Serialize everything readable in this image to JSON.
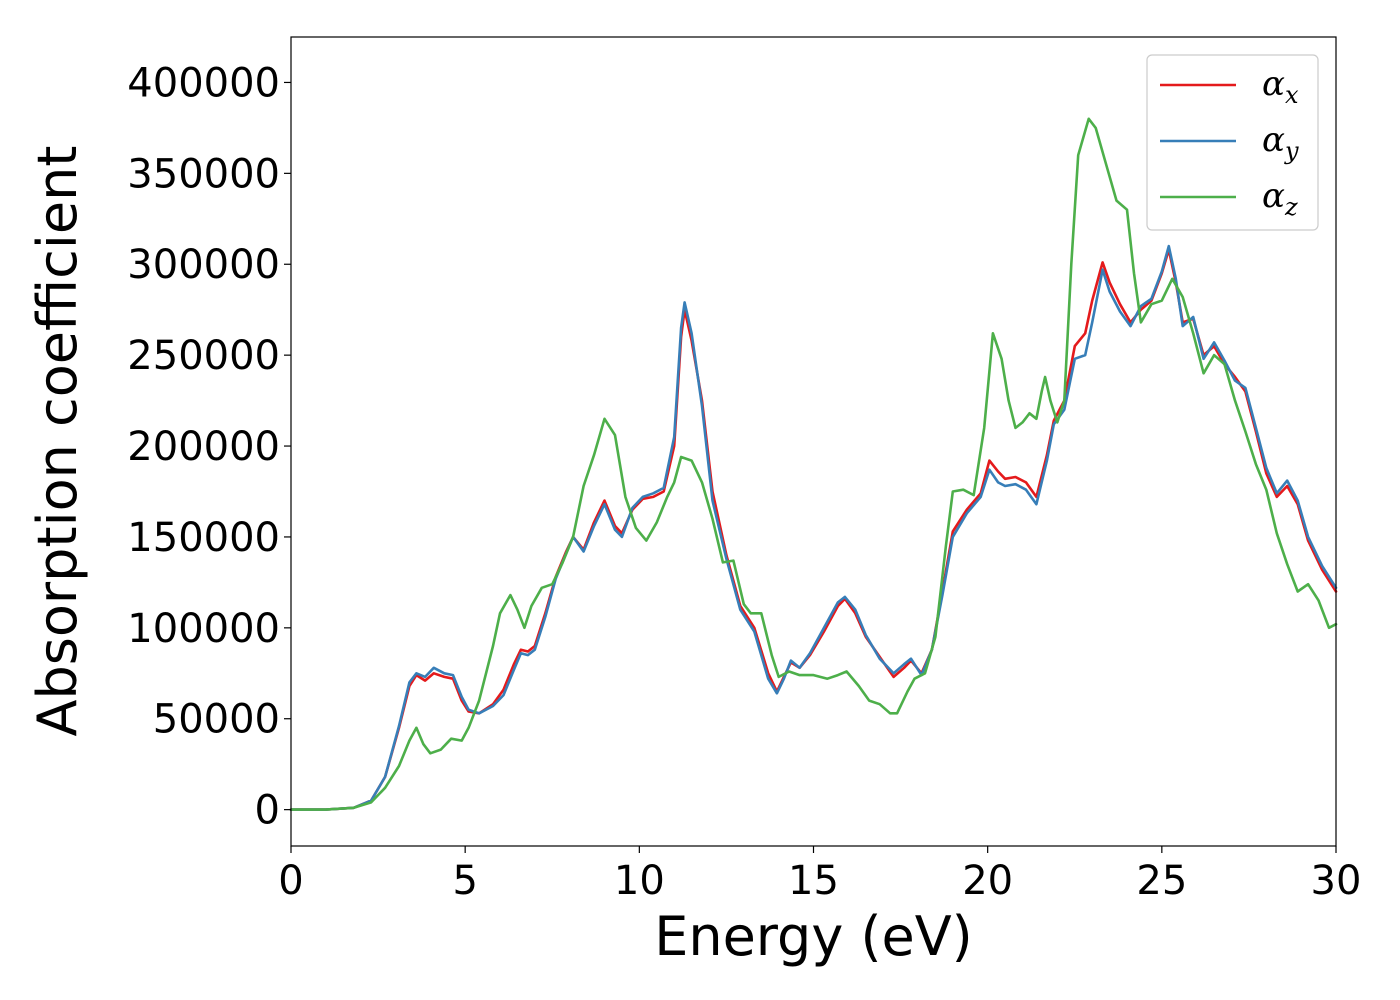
{
  "chart_data": {
    "type": "line",
    "xlabel": "Energy (eV)",
    "ylabel": "Absorption coefficient",
    "xlim": [
      0,
      30
    ],
    "ylim": [
      -20000,
      425000
    ],
    "xticks": [
      0,
      5,
      10,
      15,
      20,
      25,
      30
    ],
    "xtick_labels": [
      "0",
      "5",
      "10",
      "15",
      "20",
      "25",
      "30"
    ],
    "yticks": [
      0,
      50000,
      100000,
      150000,
      200000,
      250000,
      300000,
      350000,
      400000
    ],
    "ytick_labels": [
      "0",
      "50000",
      "100000",
      "150000",
      "200000",
      "250000",
      "300000",
      "350000",
      "400000"
    ],
    "grid": false,
    "legend_position": "top-right",
    "series": [
      {
        "name": "α_x",
        "legend_symbol": "α",
        "legend_sub": "x",
        "color": "#e41a1c",
        "points": [
          [
            0,
            0
          ],
          [
            1,
            0
          ],
          [
            1.8,
            1000
          ],
          [
            2.3,
            5000
          ],
          [
            2.7,
            18000
          ],
          [
            3.1,
            45000
          ],
          [
            3.4,
            68000
          ],
          [
            3.6,
            74000
          ],
          [
            3.85,
            71000
          ],
          [
            4.1,
            75000
          ],
          [
            4.4,
            73000
          ],
          [
            4.65,
            72000
          ],
          [
            4.9,
            60000
          ],
          [
            5.1,
            54000
          ],
          [
            5.4,
            53000
          ],
          [
            5.8,
            58000
          ],
          [
            6.1,
            66000
          ],
          [
            6.4,
            80000
          ],
          [
            6.6,
            88000
          ],
          [
            6.8,
            87000
          ],
          [
            7.0,
            90000
          ],
          [
            7.3,
            108000
          ],
          [
            7.6,
            128000
          ],
          [
            7.9,
            142000
          ],
          [
            8.1,
            150000
          ],
          [
            8.4,
            143000
          ],
          [
            8.7,
            158000
          ],
          [
            9.0,
            170000
          ],
          [
            9.3,
            156000
          ],
          [
            9.5,
            152000
          ],
          [
            9.8,
            165000
          ],
          [
            10.1,
            171000
          ],
          [
            10.4,
            172000
          ],
          [
            10.7,
            175000
          ],
          [
            11.0,
            200000
          ],
          [
            11.2,
            260000
          ],
          [
            11.3,
            275000
          ],
          [
            11.5,
            258000
          ],
          [
            11.8,
            225000
          ],
          [
            12.1,
            175000
          ],
          [
            12.5,
            140000
          ],
          [
            12.9,
            112000
          ],
          [
            13.3,
            100000
          ],
          [
            13.7,
            75000
          ],
          [
            13.95,
            65000
          ],
          [
            14.15,
            73000
          ],
          [
            14.35,
            81000
          ],
          [
            14.6,
            78000
          ],
          [
            14.9,
            85000
          ],
          [
            15.3,
            98000
          ],
          [
            15.7,
            112000
          ],
          [
            15.9,
            116000
          ],
          [
            16.2,
            108000
          ],
          [
            16.5,
            95000
          ],
          [
            16.9,
            84000
          ],
          [
            17.3,
            73000
          ],
          [
            17.6,
            78000
          ],
          [
            17.8,
            82000
          ],
          [
            18.1,
            75000
          ],
          [
            18.4,
            88000
          ],
          [
            18.7,
            120000
          ],
          [
            19.0,
            153000
          ],
          [
            19.4,
            165000
          ],
          [
            19.8,
            174000
          ],
          [
            20.05,
            192000
          ],
          [
            20.3,
            186000
          ],
          [
            20.5,
            182000
          ],
          [
            20.8,
            183000
          ],
          [
            21.1,
            180000
          ],
          [
            21.4,
            172000
          ],
          [
            21.7,
            195000
          ],
          [
            21.9,
            214000
          ],
          [
            22.2,
            225000
          ],
          [
            22.5,
            255000
          ],
          [
            22.8,
            262000
          ],
          [
            23.0,
            280000
          ],
          [
            23.3,
            301000
          ],
          [
            23.5,
            290000
          ],
          [
            23.8,
            278000
          ],
          [
            24.1,
            268000
          ],
          [
            24.4,
            275000
          ],
          [
            24.7,
            280000
          ],
          [
            25.0,
            295000
          ],
          [
            25.2,
            308000
          ],
          [
            25.4,
            290000
          ],
          [
            25.6,
            268000
          ],
          [
            25.9,
            270000
          ],
          [
            26.2,
            250000
          ],
          [
            26.5,
            255000
          ],
          [
            26.8,
            245000
          ],
          [
            27.1,
            238000
          ],
          [
            27.4,
            230000
          ],
          [
            27.7,
            208000
          ],
          [
            28.0,
            185000
          ],
          [
            28.3,
            172000
          ],
          [
            28.6,
            178000
          ],
          [
            28.9,
            168000
          ],
          [
            29.2,
            148000
          ],
          [
            29.6,
            132000
          ],
          [
            30.0,
            120000
          ]
        ]
      },
      {
        "name": "α_y",
        "legend_symbol": "α",
        "legend_sub": "y",
        "color": "#377eb8",
        "points": [
          [
            0,
            0
          ],
          [
            1,
            0
          ],
          [
            1.8,
            1000
          ],
          [
            2.3,
            5000
          ],
          [
            2.7,
            18000
          ],
          [
            3.1,
            46000
          ],
          [
            3.4,
            70000
          ],
          [
            3.6,
            75000
          ],
          [
            3.85,
            73000
          ],
          [
            4.1,
            78000
          ],
          [
            4.4,
            75000
          ],
          [
            4.65,
            74000
          ],
          [
            4.9,
            62000
          ],
          [
            5.1,
            55000
          ],
          [
            5.4,
            53000
          ],
          [
            5.8,
            57000
          ],
          [
            6.1,
            63000
          ],
          [
            6.4,
            77000
          ],
          [
            6.6,
            86000
          ],
          [
            6.8,
            85000
          ],
          [
            7.0,
            88000
          ],
          [
            7.3,
            106000
          ],
          [
            7.6,
            127000
          ],
          [
            7.9,
            141000
          ],
          [
            8.1,
            150000
          ],
          [
            8.4,
            142000
          ],
          [
            8.7,
            156000
          ],
          [
            9.0,
            168000
          ],
          [
            9.3,
            154000
          ],
          [
            9.5,
            150000
          ],
          [
            9.8,
            166000
          ],
          [
            10.1,
            172000
          ],
          [
            10.4,
            174000
          ],
          [
            10.7,
            177000
          ],
          [
            11.0,
            205000
          ],
          [
            11.2,
            265000
          ],
          [
            11.3,
            279000
          ],
          [
            11.5,
            262000
          ],
          [
            11.8,
            222000
          ],
          [
            12.1,
            170000
          ],
          [
            12.5,
            138000
          ],
          [
            12.9,
            110000
          ],
          [
            13.3,
            98000
          ],
          [
            13.7,
            72000
          ],
          [
            13.95,
            64000
          ],
          [
            14.15,
            72000
          ],
          [
            14.35,
            82000
          ],
          [
            14.6,
            78000
          ],
          [
            14.9,
            86000
          ],
          [
            15.3,
            100000
          ],
          [
            15.7,
            114000
          ],
          [
            15.9,
            117000
          ],
          [
            16.2,
            110000
          ],
          [
            16.5,
            96000
          ],
          [
            16.9,
            83000
          ],
          [
            17.3,
            75000
          ],
          [
            17.6,
            80000
          ],
          [
            17.8,
            83000
          ],
          [
            18.1,
            74000
          ],
          [
            18.4,
            88000
          ],
          [
            18.7,
            118000
          ],
          [
            19.0,
            150000
          ],
          [
            19.4,
            163000
          ],
          [
            19.8,
            172000
          ],
          [
            20.05,
            187000
          ],
          [
            20.3,
            180000
          ],
          [
            20.5,
            178000
          ],
          [
            20.8,
            179000
          ],
          [
            21.1,
            176000
          ],
          [
            21.4,
            168000
          ],
          [
            21.7,
            192000
          ],
          [
            21.9,
            212000
          ],
          [
            22.2,
            220000
          ],
          [
            22.5,
            248000
          ],
          [
            22.8,
            250000
          ],
          [
            23.0,
            268000
          ],
          [
            23.3,
            297000
          ],
          [
            23.5,
            285000
          ],
          [
            23.8,
            274000
          ],
          [
            24.1,
            266000
          ],
          [
            24.4,
            277000
          ],
          [
            24.7,
            281000
          ],
          [
            25.0,
            296000
          ],
          [
            25.2,
            310000
          ],
          [
            25.4,
            292000
          ],
          [
            25.6,
            266000
          ],
          [
            25.9,
            271000
          ],
          [
            26.2,
            248000
          ],
          [
            26.5,
            257000
          ],
          [
            26.8,
            247000
          ],
          [
            27.1,
            236000
          ],
          [
            27.4,
            232000
          ],
          [
            27.7,
            210000
          ],
          [
            28.0,
            188000
          ],
          [
            28.3,
            174000
          ],
          [
            28.6,
            181000
          ],
          [
            28.9,
            170000
          ],
          [
            29.2,
            150000
          ],
          [
            29.6,
            134000
          ],
          [
            30.0,
            122000
          ]
        ]
      },
      {
        "name": "α_z",
        "legend_symbol": "α",
        "legend_sub": "z",
        "color": "#4daf4a",
        "points": [
          [
            0,
            0
          ],
          [
            1,
            0
          ],
          [
            1.8,
            1000
          ],
          [
            2.3,
            4000
          ],
          [
            2.7,
            12000
          ],
          [
            3.1,
            24000
          ],
          [
            3.4,
            38000
          ],
          [
            3.6,
            45000
          ],
          [
            3.8,
            36000
          ],
          [
            4.0,
            31000
          ],
          [
            4.3,
            33000
          ],
          [
            4.6,
            39000
          ],
          [
            4.9,
            38000
          ],
          [
            5.1,
            45000
          ],
          [
            5.4,
            60000
          ],
          [
            5.8,
            90000
          ],
          [
            6.0,
            108000
          ],
          [
            6.3,
            118000
          ],
          [
            6.5,
            110000
          ],
          [
            6.7,
            100000
          ],
          [
            6.9,
            112000
          ],
          [
            7.2,
            122000
          ],
          [
            7.5,
            124000
          ],
          [
            7.8,
            136000
          ],
          [
            8.1,
            150000
          ],
          [
            8.4,
            178000
          ],
          [
            8.7,
            195000
          ],
          [
            9.0,
            215000
          ],
          [
            9.3,
            206000
          ],
          [
            9.6,
            172000
          ],
          [
            9.9,
            155000
          ],
          [
            10.2,
            148000
          ],
          [
            10.5,
            158000
          ],
          [
            10.8,
            172000
          ],
          [
            11.0,
            180000
          ],
          [
            11.2,
            194000
          ],
          [
            11.5,
            192000
          ],
          [
            11.8,
            180000
          ],
          [
            12.1,
            160000
          ],
          [
            12.4,
            136000
          ],
          [
            12.7,
            137000
          ],
          [
            13.0,
            113000
          ],
          [
            13.2,
            108000
          ],
          [
            13.5,
            108000
          ],
          [
            13.8,
            85000
          ],
          [
            14.0,
            73000
          ],
          [
            14.3,
            76000
          ],
          [
            14.6,
            74000
          ],
          [
            15.0,
            74000
          ],
          [
            15.4,
            72000
          ],
          [
            15.7,
            74000
          ],
          [
            15.95,
            76000
          ],
          [
            16.3,
            68000
          ],
          [
            16.6,
            60000
          ],
          [
            16.9,
            58000
          ],
          [
            17.2,
            53000
          ],
          [
            17.4,
            53000
          ],
          [
            17.7,
            65000
          ],
          [
            17.9,
            72000
          ],
          [
            18.2,
            75000
          ],
          [
            18.5,
            95000
          ],
          [
            18.8,
            145000
          ],
          [
            19.0,
            175000
          ],
          [
            19.3,
            176000
          ],
          [
            19.6,
            173000
          ],
          [
            19.9,
            210000
          ],
          [
            20.15,
            262000
          ],
          [
            20.4,
            248000
          ],
          [
            20.6,
            225000
          ],
          [
            20.8,
            210000
          ],
          [
            21.0,
            213000
          ],
          [
            21.2,
            218000
          ],
          [
            21.4,
            215000
          ],
          [
            21.55,
            230000
          ],
          [
            21.65,
            238000
          ],
          [
            21.8,
            225000
          ],
          [
            22.0,
            213000
          ],
          [
            22.2,
            225000
          ],
          [
            22.4,
            300000
          ],
          [
            22.6,
            360000
          ],
          [
            22.9,
            380000
          ],
          [
            23.1,
            375000
          ],
          [
            23.4,
            355000
          ],
          [
            23.7,
            335000
          ],
          [
            24.0,
            330000
          ],
          [
            24.2,
            295000
          ],
          [
            24.4,
            268000
          ],
          [
            24.7,
            278000
          ],
          [
            25.0,
            280000
          ],
          [
            25.3,
            292000
          ],
          [
            25.6,
            282000
          ],
          [
            25.9,
            262000
          ],
          [
            26.2,
            240000
          ],
          [
            26.5,
            250000
          ],
          [
            26.8,
            245000
          ],
          [
            27.1,
            225000
          ],
          [
            27.4,
            208000
          ],
          [
            27.7,
            190000
          ],
          [
            28.0,
            176000
          ],
          [
            28.3,
            152000
          ],
          [
            28.6,
            135000
          ],
          [
            28.9,
            120000
          ],
          [
            29.2,
            124000
          ],
          [
            29.5,
            115000
          ],
          [
            29.8,
            100000
          ],
          [
            30.0,
            102000
          ]
        ]
      }
    ]
  }
}
